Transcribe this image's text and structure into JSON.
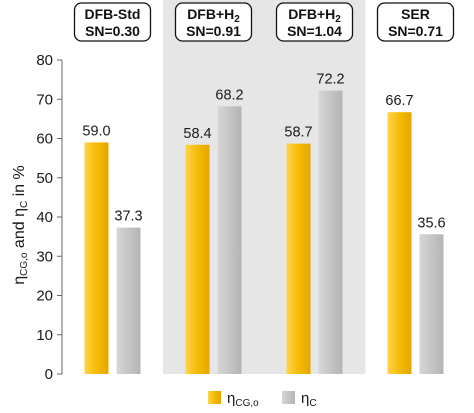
{
  "chart_data": {
    "type": "bar",
    "ylabel_parts": [
      "η",
      "CG,o",
      " and η",
      "C",
      " in %"
    ],
    "ylim": [
      0,
      80
    ],
    "yticks": [
      0,
      10,
      20,
      30,
      40,
      50,
      60,
      70,
      80
    ],
    "groups": [
      {
        "line1": "DFB-Std",
        "line2": "SN=0.30",
        "shaded": false
      },
      {
        "line1": "DFB+H",
        "line1_sub": "2",
        "line2": "SN=0.91",
        "shaded": true
      },
      {
        "line1": "DFB+H",
        "line1_sub": "2",
        "line2": "SN=1.04",
        "shaded": true
      },
      {
        "line1": "SER",
        "line2": "SN=0.71",
        "shaded": false
      }
    ],
    "series": [
      {
        "name": "η",
        "name_sub": "CG,o",
        "color": "#f5b800",
        "values": [
          59.0,
          58.4,
          58.7,
          66.7
        ],
        "labels": [
          "59.0",
          "58.4",
          "58.7",
          "66.7"
        ]
      },
      {
        "name": "η",
        "name_sub": "C",
        "color": "#c3c3c3",
        "values": [
          37.3,
          68.2,
          72.2,
          35.6
        ],
        "labels": [
          "37.3",
          "68.2",
          "72.2",
          "35.6"
        ]
      }
    ],
    "shade_color": "#e6e6e6",
    "grid": false,
    "legend_position": "bottom"
  }
}
